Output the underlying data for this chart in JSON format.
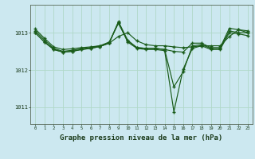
{
  "background_color": "#cce8f0",
  "grid_color": "#b0d8c8",
  "line_color": "#1a5c1a",
  "marker_color": "#1a5c1a",
  "xlabel": "Graphe pression niveau de la mer (hPa)",
  "xlabel_fontsize": 6.5,
  "ytick_labels": [
    "1011",
    "1012",
    "1013"
  ],
  "yticks": [
    1011,
    1012,
    1013
  ],
  "ylim": [
    1010.55,
    1013.75
  ],
  "xlim": [
    -0.5,
    23.5
  ],
  "xticks": [
    0,
    1,
    2,
    3,
    4,
    5,
    6,
    7,
    8,
    9,
    10,
    11,
    12,
    13,
    14,
    15,
    16,
    17,
    18,
    19,
    20,
    21,
    22,
    23
  ],
  "series": [
    [
      1013.1,
      1012.85,
      1012.62,
      1012.55,
      1012.57,
      1012.6,
      1012.62,
      1012.65,
      1012.72,
      1012.9,
      1013.0,
      1012.78,
      1012.68,
      1012.65,
      1012.65,
      1012.62,
      1012.6,
      1012.62,
      1012.65,
      1012.65,
      1012.65,
      1012.9,
      1013.08,
      1013.05
    ],
    [
      1013.05,
      1012.8,
      1012.58,
      1012.5,
      1012.53,
      1012.57,
      1012.6,
      1012.65,
      1012.75,
      1013.25,
      1012.78,
      1012.6,
      1012.58,
      1012.58,
      1012.55,
      1012.5,
      1012.48,
      1012.72,
      1012.72,
      1012.6,
      1012.6,
      1013.12,
      1013.08,
      1013.0
    ],
    [
      1013.0,
      1012.75,
      1012.55,
      1012.48,
      1012.5,
      1012.55,
      1012.58,
      1012.63,
      1012.72,
      1013.3,
      1012.8,
      1012.6,
      1012.58,
      1012.58,
      1012.55,
      1011.55,
      1011.95,
      1012.65,
      1012.68,
      1012.58,
      1012.58,
      1013.05,
      1013.0,
      1013.0
    ],
    [
      1013.0,
      1012.75,
      1012.55,
      1012.48,
      1012.5,
      1012.55,
      1012.58,
      1012.63,
      1012.72,
      1013.28,
      1012.75,
      1012.58,
      1012.55,
      1012.55,
      1012.52,
      1010.88,
      1012.02,
      1012.58,
      1012.65,
      1012.55,
      1012.55,
      1013.0,
      1012.97,
      1012.92
    ]
  ]
}
